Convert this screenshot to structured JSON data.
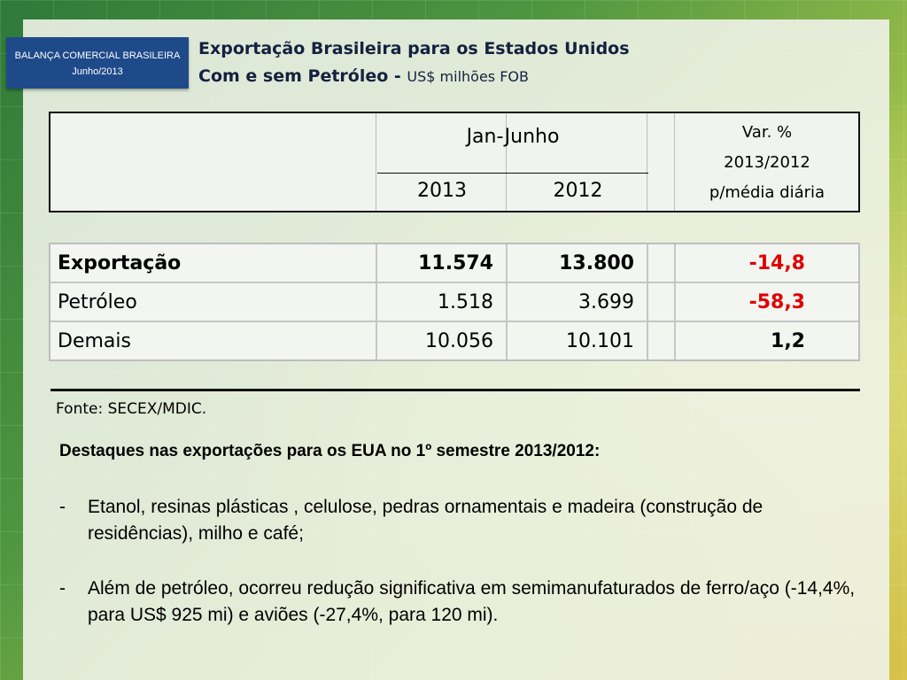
{
  "brand": {
    "line1": "BALANÇA COMERCIAL BRASILEIRA",
    "line2": "Junho/2013"
  },
  "title": {
    "line1": "Exportação Brasileira para os Estados Unidos",
    "line2_main": "Com e sem Petróleo - ",
    "line2_unit": "US$ milhões FOB"
  },
  "table": {
    "header": {
      "period": "Jan-Junho",
      "year_2013": "2013",
      "year_2012": "2012",
      "var_line1": "Var. %",
      "var_line2": "2013/2012",
      "var_line3": "p/média diária"
    },
    "rows": [
      {
        "label": "Exportação",
        "v2013": "11.574",
        "v2012": "13.800",
        "var": "-14,8"
      },
      {
        "label": "Petróleo",
        "v2013": "1.518",
        "v2012": "3.699",
        "var": "-58,3"
      },
      {
        "label": "Demais",
        "v2013": "10.056",
        "v2012": "10.101",
        "var": "1,2"
      }
    ]
  },
  "source": "Fonte: SECEX/MDIC.",
  "highlights": {
    "title": "Destaques nas exportações para os EUA no 1º semestre 2013/2012:",
    "items": [
      {
        "dash": "-",
        "text": "Etanol, resinas plásticas , celulose, pedras ornamentais e madeira (construção de residências), milho e café;"
      },
      {
        "dash": "-",
        "text": "Além de petróleo, ocorreu redução significativa em semimanufaturados de ferro/aço (-14,4%, para US$ 925 mi) e aviões (-27,4%, para 120 mi)."
      }
    ]
  },
  "colors": {
    "negative": "#e00000",
    "brand_box": "#1f4a8a",
    "title_text": "#14213f"
  }
}
